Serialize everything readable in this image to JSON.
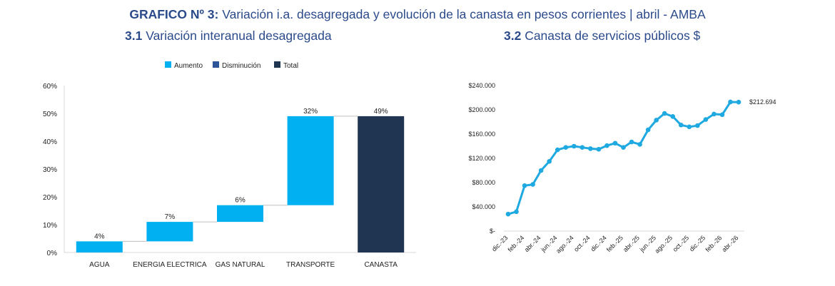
{
  "header": {
    "title_bold": "GRAFICO Nº 3:",
    "title_rest": " Variación i.a. desagregada y evolución de la canasta en pesos corrientes | abril - AMBA",
    "sub1_num": "3.1",
    "sub1_text": " Variación interanual desagregada",
    "sub2_num": "3.2",
    "sub2_text": " Canasta de servicios públicos $"
  },
  "colors": {
    "aumento": "#00b0f0",
    "disminucion": "#2e5597",
    "total": "#1f3552",
    "line": "#1fa9e1"
  },
  "chart_data": [
    {
      "type": "bar",
      "subtype": "waterfall",
      "legend": [
        "Aumento",
        "Disminución",
        "Total"
      ],
      "legend_position": "top",
      "categories": [
        "AGUA",
        "ENERGIA ELECTRICA",
        "GAS NATURAL",
        "TRANSPORTE",
        "CANASTA"
      ],
      "values": [
        4,
        7,
        6,
        32,
        49
      ],
      "kinds": [
        "aumento",
        "aumento",
        "aumento",
        "aumento",
        "total"
      ],
      "labels": [
        "4%",
        "7%",
        "6%",
        "32%",
        "49%"
      ],
      "yticks": [
        "0%",
        "10%",
        "20%",
        "30%",
        "40%",
        "50%",
        "60%"
      ],
      "ylim": [
        0,
        60
      ],
      "grid": false
    },
    {
      "type": "line",
      "x": [
        "dic.-23",
        "ene.-24",
        "feb.-24",
        "mar.-24",
        "abr.-24",
        "may.-24",
        "jun.-24",
        "jul.-24",
        "ago.-24",
        "sep.-24",
        "oct.-24",
        "nov.-24",
        "dic.-24",
        "ene.-25",
        "feb.-25",
        "mar.-25",
        "abr.-25",
        "may.-25",
        "jun.-25",
        "jul.-25",
        "ago.-25",
        "sep.-25",
        "oct.-25",
        "nov.-25",
        "dic.-25",
        "ene.-26",
        "feb.-26",
        "mar.-26",
        "abr.-26"
      ],
      "xticks": [
        "dic.-23",
        "feb.-24",
        "abr.-24",
        "jun.-24",
        "ago.-24",
        "oct.-24",
        "dic.-24",
        "feb.-25",
        "abr.-25",
        "jun.-25",
        "ago.-25",
        "oct.-25",
        "dic.-25",
        "feb.-26",
        "abr.-26"
      ],
      "series": [
        {
          "values": [
            28000,
            32000,
            75000,
            77000,
            100000,
            115000,
            134000,
            138000,
            140000,
            138000,
            136000,
            135000,
            141000,
            145000,
            138000,
            147000,
            143000,
            167000,
            183000,
            194000,
            189000,
            175000,
            172000,
            174000,
            184000,
            193000,
            192000,
            213000,
            212694
          ]
        }
      ],
      "end_label": "$212.694",
      "yticks": [
        "$-",
        "$40.000",
        "$80.000",
        "$120.000",
        "$160.000",
        "$200.000",
        "$240.000"
      ],
      "ylim": [
        0,
        240000
      ],
      "grid": false
    }
  ]
}
